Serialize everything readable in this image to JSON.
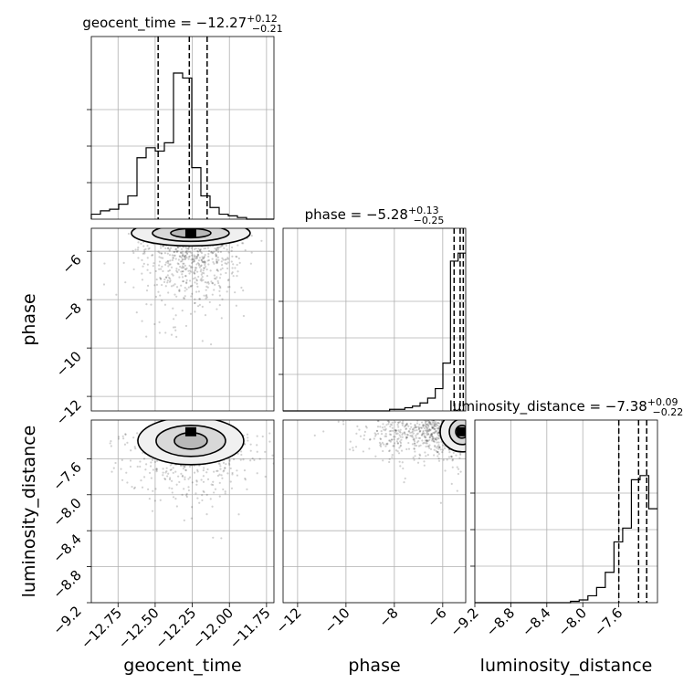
{
  "chart_data": {
    "type": "corner",
    "parameters": [
      "geocent_time",
      "phase",
      "luminosity_distance"
    ],
    "grid": true,
    "panels": [
      {
        "kind": "histogram",
        "parameter": "geocent_time",
        "title": {
          "label": "geocent_time = ",
          "median": "−12.27",
          "plus": "+0.12",
          "minus": "−0.21"
        },
        "xlim": [
          -12.93,
          -11.7
        ],
        "bin_width": 0.0615,
        "counts": [
          0.03,
          0.05,
          0.06,
          0.09,
          0.14,
          0.37,
          0.43,
          0.41,
          0.46,
          0.88,
          0.85,
          0.31,
          0.14,
          0.07,
          0.03,
          0.02,
          0.01,
          0,
          0,
          0
        ],
        "quantile_lines": [
          -12.48,
          -12.27,
          -12.15
        ]
      },
      {
        "kind": "histogram",
        "parameter": "phase",
        "title": {
          "label": "phase = ",
          "median": "−5.28",
          "plus": "+0.13",
          "minus": "−0.25"
        },
        "xlim": [
          -12.6,
          -5.05
        ],
        "counts": [
          0,
          0,
          0,
          0,
          0,
          0,
          0,
          0,
          0,
          0,
          0,
          0,
          0,
          0,
          0.01,
          0.01,
          0.02,
          0.03,
          0.05,
          0.08,
          0.14,
          0.3,
          0.94,
          0.99
        ],
        "quantile_lines": [
          -5.53,
          -5.28,
          -5.15
        ]
      },
      {
        "kind": "histogram",
        "parameter": "luminosity_distance",
        "title": {
          "label": "luminosity_distance = ",
          "median": "−7.38",
          "plus": "+0.09",
          "minus": "−0.22"
        },
        "xlim": [
          -9.2,
          -7.17
        ],
        "counts": [
          0,
          0,
          0,
          0,
          0,
          0,
          0,
          0,
          0,
          0,
          0,
          0.01,
          0.02,
          0.05,
          0.11,
          0.22,
          0.44,
          0.54,
          0.89,
          0.92,
          0.68
        ],
        "quantile_lines": [
          -7.6,
          -7.38,
          -7.29
        ]
      },
      {
        "kind": "scatter_contour",
        "x": "geocent_time",
        "y": "phase",
        "xlim": [
          -12.93,
          -11.7
        ],
        "ylim": [
          -12.6,
          -5.05
        ],
        "mode": {
          "x": -12.26,
          "y": -5.25
        },
        "contour_levels": 3
      },
      {
        "kind": "scatter_contour",
        "x": "geocent_time",
        "y": "luminosity_distance",
        "xlim": [
          -12.93,
          -11.7
        ],
        "ylim": [
          -9.2,
          -7.17
        ],
        "mode": {
          "x": -12.26,
          "y": -7.3
        },
        "contour_levels": 3
      },
      {
        "kind": "scatter_contour",
        "x": "phase",
        "y": "luminosity_distance",
        "xlim": [
          -12.6,
          -5.05
        ],
        "ylim": [
          -9.2,
          -7.17
        ],
        "mode": {
          "x": -5.2,
          "y": -7.3
        },
        "contour_levels": 3
      }
    ],
    "axis_labels": {
      "geocent_time": "geocent_time",
      "phase": "phase",
      "luminosity_distance": "luminosity_distance"
    },
    "ticks": {
      "geocent_time": {
        "values": [
          -12.75,
          -12.5,
          -12.25,
          -12.0,
          -11.75
        ],
        "labels": [
          "−12.75",
          "−12.50",
          "−12.25",
          "−12.00",
          "−11.75"
        ]
      },
      "phase": {
        "values": [
          -12,
          -10,
          -8,
          -6
        ],
        "labels": [
          "−12",
          "−10",
          "−8",
          "−6"
        ]
      },
      "luminosity_distance": {
        "values": [
          -9.2,
          -8.8,
          -8.4,
          -8.0,
          -7.6
        ],
        "labels": [
          "−9.2",
          "−8.8",
          "−8.4",
          "−8.0",
          "−7.6"
        ]
      },
      "hist_y_fraction": [
        0.25,
        0.5,
        0.75
      ]
    }
  }
}
